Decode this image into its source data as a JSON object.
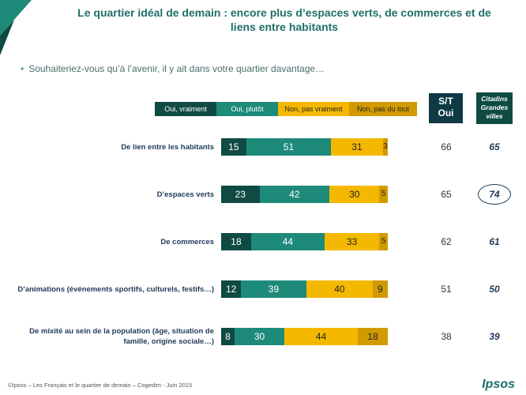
{
  "header": {
    "title_line1": "Le quartier idéal de demain : encore plus d’espaces verts, de commerces et de",
    "title_line2": "liens entre habitants",
    "question": "Souhaiteriez-vous qu’à l’avenir, il y ait dans votre quartier davantage…"
  },
  "legend": [
    {
      "label": "Oui, vraiment",
      "color": "#0f4a44"
    },
    {
      "label": "Oui, plutôt",
      "color": "#1e8a7a"
    },
    {
      "label": "Non, pas vraiment",
      "color": "#f5b800"
    },
    {
      "label": "Non, pas du tout",
      "color": "#d09a00"
    }
  ],
  "columns": {
    "st_line1": "S/T",
    "st_line2": "Oui",
    "city_line1": "Citadins",
    "city_line2": "Grandes",
    "city_line3": "villes",
    "st_color": "#0f3a44",
    "city_color": "#0f4a44"
  },
  "chart_data": {
    "type": "bar",
    "stacked": true,
    "orientation": "horizontal",
    "categories": [
      "De lien entre les habitants",
      "D’espaces verts",
      "De commerces",
      "D’animations (événements sportifs, culturels, festifs…)",
      "De mixité au sein de la population (âge, situation de famille, origine sociale…)"
    ],
    "series": [
      {
        "name": "Oui, vraiment",
        "values": [
          15,
          23,
          18,
          12,
          8
        ]
      },
      {
        "name": "Oui, plutôt",
        "values": [
          51,
          42,
          44,
          39,
          30
        ]
      },
      {
        "name": "Non, pas vraiment",
        "values": [
          31,
          30,
          33,
          40,
          44
        ]
      },
      {
        "name": "Non, pas du tout",
        "values": [
          3,
          5,
          5,
          9,
          18
        ]
      }
    ],
    "st_oui": [
      66,
      65,
      62,
      51,
      38
    ],
    "citadins_grandes_villes": [
      65,
      74,
      61,
      50,
      39
    ],
    "highlighted": "74"
  },
  "cat_lines": [
    [
      "De lien entre les habitants"
    ],
    [
      "D’espaces verts"
    ],
    [
      "De commerces"
    ],
    [
      "D’animations (événements sportifs, culturels, festifs…)"
    ],
    [
      "De mixité au sein de la population (âge, situation de",
      "famille, origine sociale…)"
    ]
  ],
  "footer": "©Ipsos – Les Français et le quartier de demain – Cogedim - Juin 2015",
  "logo": "Ipsos"
}
